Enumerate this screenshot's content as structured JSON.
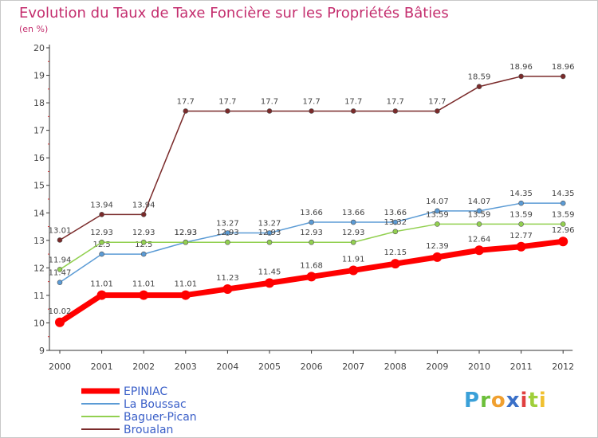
{
  "chart_data": {
    "type": "line",
    "title": "Evolution du Taux de Taxe Foncière sur les Propriétés Bâties",
    "ylabel": "(en %)",
    "xlabel": "",
    "ylim": [
      9,
      20
    ],
    "yticks": [
      "9",
      "10",
      "11",
      "12",
      "13",
      "14",
      "15",
      "16",
      "17",
      "18",
      "19",
      "20"
    ],
    "categories": [
      "2000",
      "2001",
      "2002",
      "2003",
      "2004",
      "2005",
      "2006",
      "2007",
      "2008",
      "2009",
      "2010",
      "2011",
      "2012"
    ],
    "series": [
      {
        "name": "Broualan",
        "color": "#7a2a2a",
        "values": [
          13.01,
          13.94,
          13.94,
          17.7,
          17.7,
          17.7,
          17.7,
          17.7,
          17.7,
          17.7,
          18.59,
          18.96,
          18.96
        ],
        "labels": [
          "13.01",
          "13.94",
          "13.94",
          "17.7",
          "17.7",
          "17.7",
          "17.7",
          "17.7",
          "17.7",
          "17.7",
          "18.59",
          "18.96",
          "18.96"
        ]
      },
      {
        "name": "La Boussac",
        "color": "#5b9bd5",
        "values": [
          11.47,
          12.5,
          12.5,
          12.93,
          13.27,
          13.27,
          13.66,
          13.66,
          13.66,
          14.07,
          14.07,
          14.35,
          14.35
        ],
        "labels": [
          "11.47",
          "12.5",
          "12.5",
          "12.93",
          "13.27",
          "13.27",
          "13.66",
          "13.66",
          "13.66",
          "14.07",
          "14.07",
          "14.35",
          "14.35"
        ]
      },
      {
        "name": "Baguer-Pican",
        "color": "#92d050",
        "values": [
          11.94,
          12.93,
          12.93,
          12.93,
          12.93,
          12.93,
          12.93,
          12.93,
          13.32,
          13.59,
          13.59,
          13.59,
          13.59
        ],
        "labels": [
          "11.94",
          "12.93",
          "12.93",
          "12.93",
          "12.93",
          "12.93",
          "12.93",
          "12.93",
          "13.32",
          "13.59",
          "13.59",
          "13.59",
          "13.59"
        ]
      },
      {
        "name": "EPINIAC",
        "color": "#ff0000",
        "values": [
          10.02,
          11.01,
          11.01,
          11.01,
          11.23,
          11.45,
          11.68,
          11.91,
          12.15,
          12.39,
          12.64,
          12.77,
          12.96
        ],
        "labels": [
          "10.02",
          "11.01",
          "11.01",
          "11.01",
          "11.23",
          "11.45",
          "11.68",
          "11.91",
          "12.15",
          "12.39",
          "12.64",
          "12.77",
          "12.96"
        ]
      }
    ],
    "legend_order": [
      "EPINIAC",
      "La Boussac",
      "Baguer-Pican",
      "Broualan"
    ],
    "legend_position": "bottom-left",
    "grid": false
  },
  "logo": {
    "letters": [
      "P",
      "r",
      "o",
      "x",
      "i",
      "t",
      "i"
    ],
    "colors": [
      "#3aa0d8",
      "#6cbf3a",
      "#f0a030",
      "#3a70c8",
      "#e04040",
      "#9fcf3a",
      "#f0c030"
    ]
  }
}
